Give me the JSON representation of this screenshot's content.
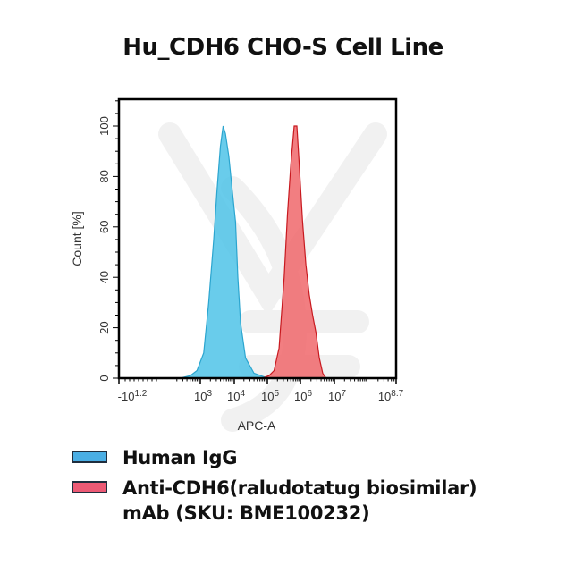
{
  "chart_data": {
    "type": "area",
    "title": "Hu_CDH6 CHO-S Cell Line",
    "xlabel": "APC-A",
    "ylabel": "Count [%]",
    "x_scale": "biexponential/log",
    "x_tick_labels": [
      {
        "base": "-10",
        "exp": "1.2"
      },
      {
        "base": "10",
        "exp": "3"
      },
      {
        "base": "10",
        "exp": "4"
      },
      {
        "base": "10",
        "exp": "5"
      },
      {
        "base": "10",
        "exp": "6"
      },
      {
        "base": "10",
        "exp": "7"
      },
      {
        "base": "10",
        "exp": "8.7"
      }
    ],
    "y_ticks": [
      0,
      20,
      40,
      60,
      80,
      100
    ],
    "ylim": [
      0,
      110
    ],
    "grid": false,
    "legend_position": "below",
    "series": [
      {
        "name": "Human IgG",
        "color": "#4fc3e8",
        "edge_color": "#2ba5cf",
        "peak_log10": 3.7,
        "peak_value": 100,
        "range_log10": [
          2.5,
          5.0
        ],
        "points_log10_pct": [
          [
            2.4,
            0
          ],
          [
            2.7,
            1
          ],
          [
            2.9,
            3
          ],
          [
            3.1,
            10
          ],
          [
            3.25,
            30
          ],
          [
            3.4,
            55
          ],
          [
            3.5,
            75
          ],
          [
            3.6,
            92
          ],
          [
            3.68,
            100
          ],
          [
            3.75,
            97
          ],
          [
            3.85,
            88
          ],
          [
            3.95,
            75
          ],
          [
            4.05,
            62
          ],
          [
            4.12,
            40
          ],
          [
            4.2,
            22
          ],
          [
            4.35,
            8
          ],
          [
            4.6,
            2
          ],
          [
            4.9,
            0.5
          ],
          [
            5.0,
            0
          ]
        ]
      },
      {
        "name": "Anti-CDH6(raludotatug biosimilar) mAb (SKU: BME100232)",
        "color": "#f0676b",
        "edge_color": "#c8191f",
        "peak_log10": 5.85,
        "peak_value": 100,
        "range_log10": [
          5.0,
          7.0
        ],
        "points_log10_pct": [
          [
            4.85,
            0
          ],
          [
            5.05,
            1
          ],
          [
            5.2,
            3
          ],
          [
            5.35,
            12
          ],
          [
            5.5,
            40
          ],
          [
            5.6,
            65
          ],
          [
            5.7,
            85
          ],
          [
            5.8,
            100
          ],
          [
            5.88,
            100
          ],
          [
            5.95,
            85
          ],
          [
            6.05,
            62
          ],
          [
            6.15,
            45
          ],
          [
            6.25,
            33
          ],
          [
            6.35,
            25
          ],
          [
            6.45,
            18
          ],
          [
            6.55,
            8
          ],
          [
            6.65,
            2
          ],
          [
            6.75,
            0
          ]
        ]
      }
    ]
  },
  "legend": {
    "items": [
      {
        "label": "Human IgG",
        "color": "#4aaee4"
      },
      {
        "label": "Anti-CDH6(raludotatug biosimilar) mAb (SKU: BME100232)",
        "color": "#ec5a75"
      }
    ]
  }
}
